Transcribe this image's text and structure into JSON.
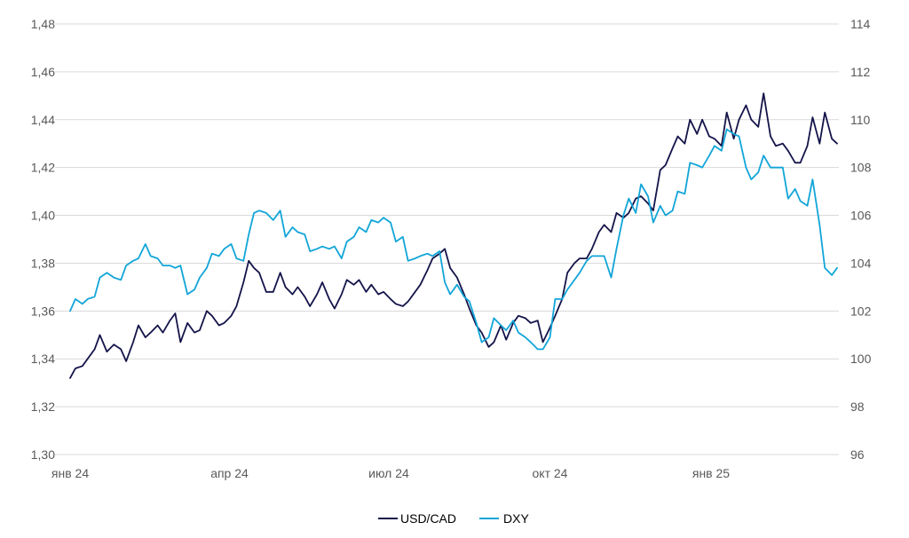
{
  "chart_data": {
    "type": "line",
    "title": "",
    "xlabel": "",
    "ylabel": "",
    "ylabel_right": "",
    "grid": true,
    "legend_position": "bottom-center",
    "x_ticks": [
      "янв 24",
      "апр 24",
      "июл 24",
      "окт 24",
      "янв 25"
    ],
    "x_tick_dates": [
      "2024-01-01",
      "2024-04-01",
      "2024-07-01",
      "2024-10-01",
      "2025-01-01"
    ],
    "x_range": [
      "2024-01-01",
      "2025-03-14"
    ],
    "y_left": {
      "range": [
        1.3,
        1.48
      ],
      "ticks": [
        "1,30",
        "1,32",
        "1,34",
        "1,36",
        "1,38",
        "1,40",
        "1,42",
        "1,44",
        "1,46",
        "1,48"
      ]
    },
    "y_right": {
      "range": [
        96,
        114
      ],
      "ticks": [
        "96",
        "98",
        "100",
        "102",
        "104",
        "106",
        "108",
        "110",
        "112",
        "114"
      ]
    },
    "series": [
      {
        "name": "USD/CAD",
        "axis": "left",
        "color": "#14144a",
        "points": [
          [
            "2024-01-01",
            1.332
          ],
          [
            "2024-01-04",
            1.336
          ],
          [
            "2024-01-08",
            1.337
          ],
          [
            "2024-01-11",
            1.34
          ],
          [
            "2024-01-15",
            1.344
          ],
          [
            "2024-01-18",
            1.35
          ],
          [
            "2024-01-22",
            1.343
          ],
          [
            "2024-01-26",
            1.346
          ],
          [
            "2024-01-30",
            1.344
          ],
          [
            "2024-02-02",
            1.339
          ],
          [
            "2024-02-06",
            1.347
          ],
          [
            "2024-02-09",
            1.354
          ],
          [
            "2024-02-13",
            1.349
          ],
          [
            "2024-02-16",
            1.351
          ],
          [
            "2024-02-20",
            1.354
          ],
          [
            "2024-02-23",
            1.351
          ],
          [
            "2024-02-27",
            1.356
          ],
          [
            "2024-03-01",
            1.359
          ],
          [
            "2024-03-04",
            1.347
          ],
          [
            "2024-03-08",
            1.355
          ],
          [
            "2024-03-12",
            1.351
          ],
          [
            "2024-03-15",
            1.352
          ],
          [
            "2024-03-19",
            1.36
          ],
          [
            "2024-03-22",
            1.358
          ],
          [
            "2024-03-26",
            1.354
          ],
          [
            "2024-03-29",
            1.355
          ],
          [
            "2024-04-02",
            1.358
          ],
          [
            "2024-04-05",
            1.362
          ],
          [
            "2024-04-09",
            1.372
          ],
          [
            "2024-04-12",
            1.381
          ],
          [
            "2024-04-15",
            1.378
          ],
          [
            "2024-04-18",
            1.376
          ],
          [
            "2024-04-22",
            1.368
          ],
          [
            "2024-04-26",
            1.368
          ],
          [
            "2024-04-30",
            1.376
          ],
          [
            "2024-05-03",
            1.37
          ],
          [
            "2024-05-07",
            1.367
          ],
          [
            "2024-05-10",
            1.37
          ],
          [
            "2024-05-14",
            1.366
          ],
          [
            "2024-05-17",
            1.362
          ],
          [
            "2024-05-21",
            1.367
          ],
          [
            "2024-05-24",
            1.372
          ],
          [
            "2024-05-28",
            1.365
          ],
          [
            "2024-05-31",
            1.361
          ],
          [
            "2024-06-04",
            1.367
          ],
          [
            "2024-06-07",
            1.373
          ],
          [
            "2024-06-11",
            1.371
          ],
          [
            "2024-06-14",
            1.373
          ],
          [
            "2024-06-18",
            1.368
          ],
          [
            "2024-06-21",
            1.371
          ],
          [
            "2024-06-25",
            1.367
          ],
          [
            "2024-06-28",
            1.368
          ],
          [
            "2024-07-02",
            1.365
          ],
          [
            "2024-07-05",
            1.363
          ],
          [
            "2024-07-09",
            1.362
          ],
          [
            "2024-07-12",
            1.364
          ],
          [
            "2024-07-16",
            1.368
          ],
          [
            "2024-07-19",
            1.371
          ],
          [
            "2024-07-23",
            1.377
          ],
          [
            "2024-07-26",
            1.382
          ],
          [
            "2024-07-30",
            1.384
          ],
          [
            "2024-08-02",
            1.386
          ],
          [
            "2024-08-05",
            1.378
          ],
          [
            "2024-08-09",
            1.374
          ],
          [
            "2024-08-13",
            1.367
          ],
          [
            "2024-08-16",
            1.361
          ],
          [
            "2024-08-20",
            1.354
          ],
          [
            "2024-08-23",
            1.351
          ],
          [
            "2024-08-27",
            1.345
          ],
          [
            "2024-08-30",
            1.347
          ],
          [
            "2024-09-03",
            1.354
          ],
          [
            "2024-09-06",
            1.348
          ],
          [
            "2024-09-10",
            1.355
          ],
          [
            "2024-09-13",
            1.358
          ],
          [
            "2024-09-17",
            1.357
          ],
          [
            "2024-09-20",
            1.355
          ],
          [
            "2024-09-24",
            1.356
          ],
          [
            "2024-09-27",
            1.347
          ],
          [
            "2024-10-01",
            1.353
          ],
          [
            "2024-10-04",
            1.358
          ],
          [
            "2024-10-08",
            1.365
          ],
          [
            "2024-10-11",
            1.376
          ],
          [
            "2024-10-15",
            1.38
          ],
          [
            "2024-10-18",
            1.382
          ],
          [
            "2024-10-22",
            1.382
          ],
          [
            "2024-10-25",
            1.386
          ],
          [
            "2024-10-29",
            1.393
          ],
          [
            "2024-11-01",
            1.396
          ],
          [
            "2024-11-05",
            1.393
          ],
          [
            "2024-11-08",
            1.401
          ],
          [
            "2024-11-12",
            1.399
          ],
          [
            "2024-11-15",
            1.401
          ],
          [
            "2024-11-19",
            1.407
          ],
          [
            "2024-11-22",
            1.408
          ],
          [
            "2024-11-26",
            1.405
          ],
          [
            "2024-11-29",
            1.402
          ],
          [
            "2024-12-03",
            1.419
          ],
          [
            "2024-12-06",
            1.421
          ],
          [
            "2024-12-10",
            1.428
          ],
          [
            "2024-12-13",
            1.433
          ],
          [
            "2024-12-17",
            1.43
          ],
          [
            "2024-12-20",
            1.44
          ],
          [
            "2024-12-24",
            1.434
          ],
          [
            "2024-12-27",
            1.44
          ],
          [
            "2024-12-31",
            1.433
          ],
          [
            "2025-01-03",
            1.432
          ],
          [
            "2025-01-07",
            1.429
          ],
          [
            "2025-01-10",
            1.443
          ],
          [
            "2025-01-14",
            1.432
          ],
          [
            "2025-01-17",
            1.44
          ],
          [
            "2025-01-21",
            1.446
          ],
          [
            "2025-01-24",
            1.44
          ],
          [
            "2025-01-28",
            1.437
          ],
          [
            "2025-01-31",
            1.451
          ],
          [
            "2025-02-04",
            1.433
          ],
          [
            "2025-02-07",
            1.429
          ],
          [
            "2025-02-11",
            1.43
          ],
          [
            "2025-02-14",
            1.427
          ],
          [
            "2025-02-18",
            1.422
          ],
          [
            "2025-02-21",
            1.422
          ],
          [
            "2025-02-25",
            1.429
          ],
          [
            "2025-02-28",
            1.441
          ],
          [
            "2025-03-04",
            1.43
          ],
          [
            "2025-03-07",
            1.443
          ],
          [
            "2025-03-11",
            1.432
          ],
          [
            "2025-03-14",
            1.43
          ]
        ]
      },
      {
        "name": "DXY",
        "axis": "right",
        "color": "#11a5d8",
        "points": [
          [
            "2024-01-01",
            102.0
          ],
          [
            "2024-01-04",
            102.5
          ],
          [
            "2024-01-08",
            102.3
          ],
          [
            "2024-01-11",
            102.5
          ],
          [
            "2024-01-15",
            102.6
          ],
          [
            "2024-01-18",
            103.4
          ],
          [
            "2024-01-22",
            103.6
          ],
          [
            "2024-01-26",
            103.4
          ],
          [
            "2024-01-30",
            103.3
          ],
          [
            "2024-02-02",
            103.9
          ],
          [
            "2024-02-06",
            104.1
          ],
          [
            "2024-02-09",
            104.2
          ],
          [
            "2024-02-13",
            104.8
          ],
          [
            "2024-02-16",
            104.3
          ],
          [
            "2024-02-20",
            104.2
          ],
          [
            "2024-02-23",
            103.9
          ],
          [
            "2024-02-27",
            103.9
          ],
          [
            "2024-03-01",
            103.8
          ],
          [
            "2024-03-04",
            103.9
          ],
          [
            "2024-03-08",
            102.7
          ],
          [
            "2024-03-12",
            102.9
          ],
          [
            "2024-03-15",
            103.4
          ],
          [
            "2024-03-19",
            103.8
          ],
          [
            "2024-03-22",
            104.4
          ],
          [
            "2024-03-26",
            104.3
          ],
          [
            "2024-03-29",
            104.6
          ],
          [
            "2024-04-02",
            104.8
          ],
          [
            "2024-04-05",
            104.2
          ],
          [
            "2024-04-09",
            104.1
          ],
          [
            "2024-04-12",
            105.2
          ],
          [
            "2024-04-15",
            106.1
          ],
          [
            "2024-04-18",
            106.2
          ],
          [
            "2024-04-22",
            106.1
          ],
          [
            "2024-04-26",
            105.8
          ],
          [
            "2024-04-30",
            106.2
          ],
          [
            "2024-05-03",
            105.1
          ],
          [
            "2024-05-07",
            105.5
          ],
          [
            "2024-05-10",
            105.3
          ],
          [
            "2024-05-14",
            105.2
          ],
          [
            "2024-05-17",
            104.5
          ],
          [
            "2024-05-21",
            104.6
          ],
          [
            "2024-05-24",
            104.7
          ],
          [
            "2024-05-28",
            104.6
          ],
          [
            "2024-05-31",
            104.7
          ],
          [
            "2024-06-04",
            104.2
          ],
          [
            "2024-06-07",
            104.9
          ],
          [
            "2024-06-11",
            105.1
          ],
          [
            "2024-06-14",
            105.5
          ],
          [
            "2024-06-18",
            105.3
          ],
          [
            "2024-06-21",
            105.8
          ],
          [
            "2024-06-25",
            105.7
          ],
          [
            "2024-06-28",
            105.9
          ],
          [
            "2024-07-02",
            105.7
          ],
          [
            "2024-07-05",
            104.9
          ],
          [
            "2024-07-09",
            105.1
          ],
          [
            "2024-07-12",
            104.1
          ],
          [
            "2024-07-16",
            104.2
          ],
          [
            "2024-07-19",
            104.3
          ],
          [
            "2024-07-23",
            104.4
          ],
          [
            "2024-07-26",
            104.3
          ],
          [
            "2024-07-30",
            104.5
          ],
          [
            "2024-08-02",
            103.2
          ],
          [
            "2024-08-05",
            102.7
          ],
          [
            "2024-08-09",
            103.1
          ],
          [
            "2024-08-13",
            102.6
          ],
          [
            "2024-08-16",
            102.4
          ],
          [
            "2024-08-20",
            101.5
          ],
          [
            "2024-08-23",
            100.7
          ],
          [
            "2024-08-27",
            100.9
          ],
          [
            "2024-08-30",
            101.7
          ],
          [
            "2024-09-03",
            101.4
          ],
          [
            "2024-09-06",
            101.2
          ],
          [
            "2024-09-10",
            101.6
          ],
          [
            "2024-09-13",
            101.1
          ],
          [
            "2024-09-17",
            100.9
          ],
          [
            "2024-09-20",
            100.7
          ],
          [
            "2024-09-24",
            100.4
          ],
          [
            "2024-09-27",
            100.4
          ],
          [
            "2024-10-01",
            100.9
          ],
          [
            "2024-10-04",
            102.5
          ],
          [
            "2024-10-08",
            102.5
          ],
          [
            "2024-10-11",
            102.9
          ],
          [
            "2024-10-15",
            103.3
          ],
          [
            "2024-10-18",
            103.6
          ],
          [
            "2024-10-22",
            104.1
          ],
          [
            "2024-10-25",
            104.3
          ],
          [
            "2024-10-29",
            104.3
          ],
          [
            "2024-11-01",
            104.3
          ],
          [
            "2024-11-05",
            103.4
          ],
          [
            "2024-11-08",
            104.6
          ],
          [
            "2024-11-12",
            106.0
          ],
          [
            "2024-11-15",
            106.7
          ],
          [
            "2024-11-19",
            106.1
          ],
          [
            "2024-11-22",
            107.3
          ],
          [
            "2024-11-26",
            106.8
          ],
          [
            "2024-11-29",
            105.7
          ],
          [
            "2024-12-03",
            106.4
          ],
          [
            "2024-12-06",
            106.0
          ],
          [
            "2024-12-10",
            106.2
          ],
          [
            "2024-12-13",
            107.0
          ],
          [
            "2024-12-17",
            106.9
          ],
          [
            "2024-12-20",
            108.2
          ],
          [
            "2024-12-24",
            108.1
          ],
          [
            "2024-12-27",
            108.0
          ],
          [
            "2024-12-31",
            108.5
          ],
          [
            "2025-01-03",
            108.9
          ],
          [
            "2025-01-07",
            108.7
          ],
          [
            "2025-01-10",
            109.6
          ],
          [
            "2025-01-14",
            109.4
          ],
          [
            "2025-01-17",
            109.3
          ],
          [
            "2025-01-21",
            108.0
          ],
          [
            "2025-01-24",
            107.5
          ],
          [
            "2025-01-28",
            107.8
          ],
          [
            "2025-01-31",
            108.5
          ],
          [
            "2025-02-04",
            108.0
          ],
          [
            "2025-02-07",
            108.0
          ],
          [
            "2025-02-11",
            108.0
          ],
          [
            "2025-02-14",
            106.7
          ],
          [
            "2025-02-18",
            107.1
          ],
          [
            "2025-02-21",
            106.6
          ],
          [
            "2025-02-25",
            106.4
          ],
          [
            "2025-02-28",
            107.5
          ],
          [
            "2025-03-04",
            105.6
          ],
          [
            "2025-03-07",
            103.8
          ],
          [
            "2025-03-11",
            103.5
          ],
          [
            "2025-03-14",
            103.8
          ]
        ]
      }
    ]
  }
}
